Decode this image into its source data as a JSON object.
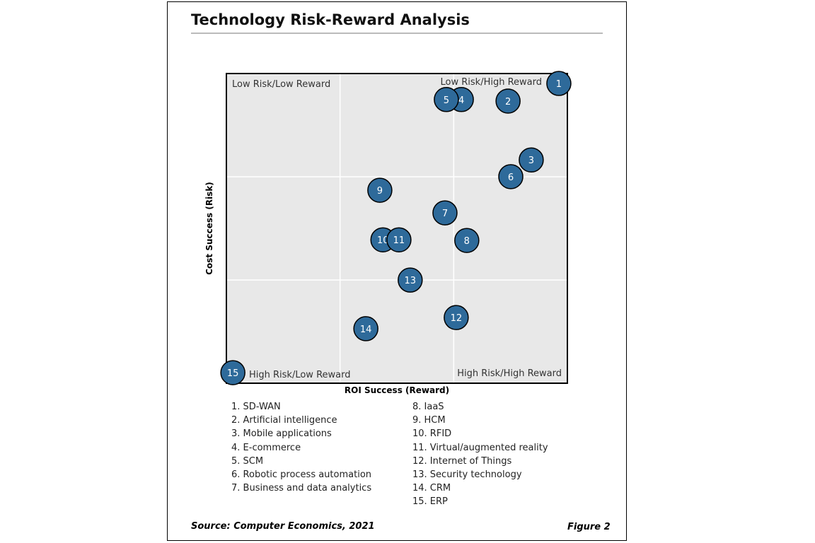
{
  "chart_data": {
    "type": "scatter",
    "title": "Technology Risk-Reward Analysis",
    "xlabel": "ROI Success (Reward)",
    "ylabel": "Cost Success (Risk)",
    "xlim": [
      0,
      100
    ],
    "ylim": [
      0,
      100
    ],
    "grid": true,
    "quadrant_labels": {
      "top_left": "Low Risk/Low Reward",
      "top_right": "Low Risk/High Reward",
      "bottom_left": "High Risk/Low Reward",
      "bottom_right": "High Risk/High Reward"
    },
    "colors": {
      "bubble": "#2e6a9a",
      "plot_bg": "#e8e8e8",
      "grid": "#ffffff"
    },
    "points": [
      {
        "id": "1",
        "label": "SD-WAN",
        "x": 97.5,
        "y": 96.8
      },
      {
        "id": "2",
        "label": "Artificial intelligence",
        "x": 82.6,
        "y": 91.1
      },
      {
        "id": "3",
        "label": "Mobile applications",
        "x": 89.4,
        "y": 72.1
      },
      {
        "id": "4",
        "label": "E-commerce",
        "x": 68.9,
        "y": 91.6
      },
      {
        "id": "5",
        "label": "SCM",
        "x": 64.5,
        "y": 91.6
      },
      {
        "id": "6",
        "label": "Robotic process automation",
        "x": 83.4,
        "y": 66.7
      },
      {
        "id": "7",
        "label": "Business and data analytics",
        "x": 64.1,
        "y": 55.0
      },
      {
        "id": "8",
        "label": "IaaS",
        "x": 70.5,
        "y": 46.1
      },
      {
        "id": "9",
        "label": "HCM",
        "x": 45.0,
        "y": 62.3
      },
      {
        "id": "10",
        "label": "RFID",
        "x": 45.9,
        "y": 46.3
      },
      {
        "id": "11",
        "label": "Virtual/augmented reality",
        "x": 50.6,
        "y": 46.3
      },
      {
        "id": "12",
        "label": "Internet of Things",
        "x": 67.4,
        "y": 21.2
      },
      {
        "id": "13",
        "label": "Security technology",
        "x": 53.9,
        "y": 33.3
      },
      {
        "id": "14",
        "label": "CRM",
        "x": 40.9,
        "y": 17.6
      },
      {
        "id": "15",
        "label": "ERP",
        "x": 1.9,
        "y": 3.4
      }
    ]
  },
  "legend_items": [
    "1. SD-WAN",
    "2. Artificial intelligence",
    "3. Mobile applications",
    "4. E-commerce",
    "5. SCM",
    "6. Robotic process automation",
    "7. Business and data analytics",
    "8. IaaS",
    "9. HCM",
    "10. RFID",
    "11. Virtual/augmented reality",
    "12. Internet of Things",
    "13. Security technology",
    "14. CRM",
    "15. ERP"
  ],
  "source": "Source: Computer Economics, 2021",
  "figure_label": "Figure 2"
}
